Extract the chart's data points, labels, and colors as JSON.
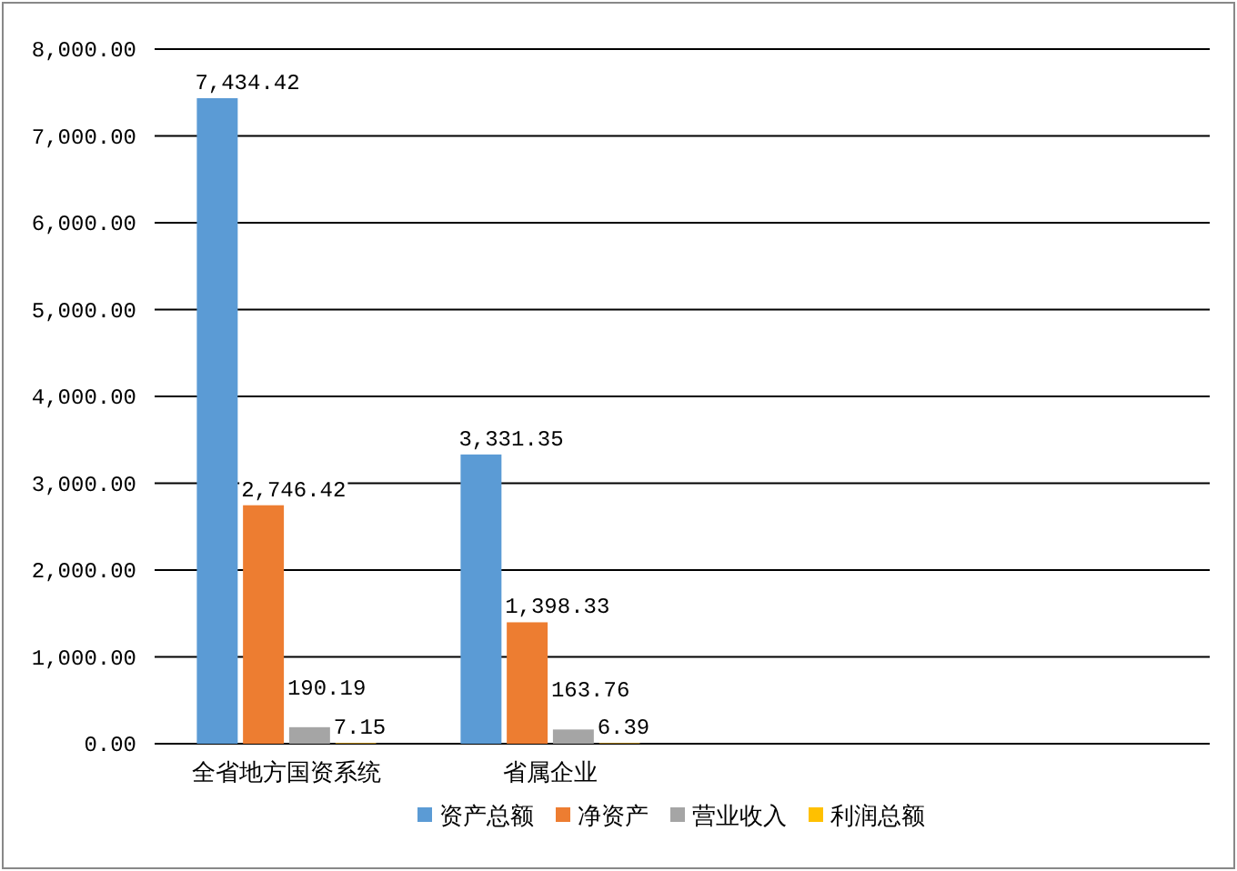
{
  "chart_data": {
    "type": "bar",
    "categories": [
      "全省地方国资系统",
      "省属企业",
      null,
      null
    ],
    "series": [
      {
        "name": "资产总额",
        "color": "#5b9bd5",
        "values": [
          7434.42,
          3331.35,
          null,
          null
        ],
        "value_labels": [
          "7,434.42",
          "3,331.35",
          null,
          null
        ]
      },
      {
        "name": "净资产",
        "color": "#ed7d31",
        "values": [
          2746.42,
          1398.33,
          null,
          null
        ],
        "value_labels": [
          "2,746.42",
          "1,398.33",
          null,
          null
        ]
      },
      {
        "name": "营业收入",
        "color": "#a5a5a5",
        "values": [
          190.19,
          163.76,
          null,
          null
        ],
        "value_labels": [
          "190.19",
          "163.76",
          null,
          null
        ]
      },
      {
        "name": "利润总额",
        "color": "#ffc000",
        "values": [
          7.15,
          6.39,
          null,
          null
        ],
        "value_labels": [
          "7.15",
          "6.39",
          null,
          null
        ]
      }
    ],
    "ylim": [
      0,
      8000
    ],
    "yticks": [
      {
        "value": 0,
        "label": "0.00"
      },
      {
        "value": 1000,
        "label": "1,000.00"
      },
      {
        "value": 2000,
        "label": "2,000.00"
      },
      {
        "value": 3000,
        "label": "3,000.00"
      },
      {
        "value": 4000,
        "label": "4,000.00"
      },
      {
        "value": 5000,
        "label": "5,000.00"
      },
      {
        "value": 6000,
        "label": "6,000.00"
      },
      {
        "value": 7000,
        "label": "7,000.00"
      },
      {
        "value": 8000,
        "label": "8,000.00"
      }
    ],
    "grid": "y",
    "legend": "bottom"
  }
}
